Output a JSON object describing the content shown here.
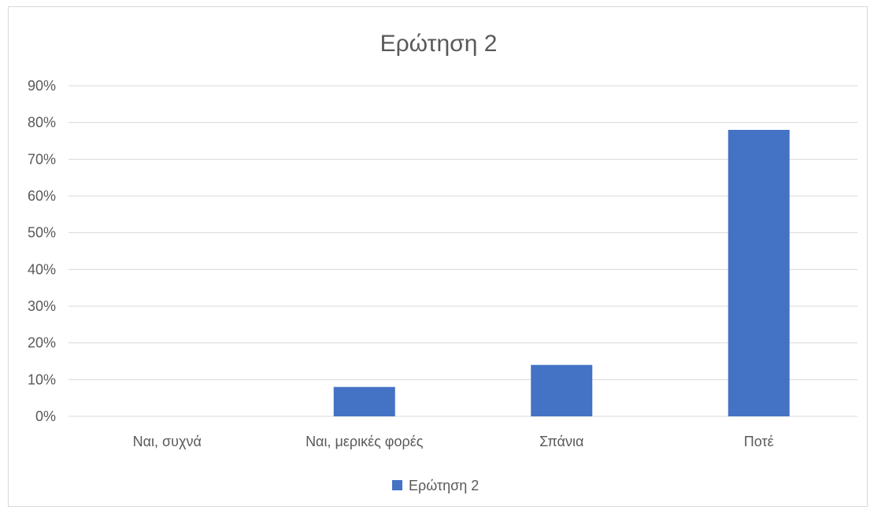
{
  "chart_data": {
    "type": "bar",
    "title": "Ερώτηση 2",
    "xlabel": "",
    "ylabel": "",
    "categories": [
      "Ναι, συχνά",
      "Ναι, μερικές φορές",
      "Σπάνια",
      "Ποτέ"
    ],
    "series": [
      {
        "name": "Ερώτηση 2",
        "values": [
          0,
          8,
          14,
          78
        ],
        "color": "#4472C4"
      }
    ],
    "ylim": [
      0,
      90
    ],
    "yticks": [
      0,
      10,
      20,
      30,
      40,
      50,
      60,
      70,
      80,
      90
    ],
    "ytick_labels": [
      "0%",
      "10%",
      "20%",
      "30%",
      "40%",
      "50%",
      "60%",
      "70%",
      "80%",
      "90%"
    ],
    "grid": true,
    "legend": "bottom"
  }
}
